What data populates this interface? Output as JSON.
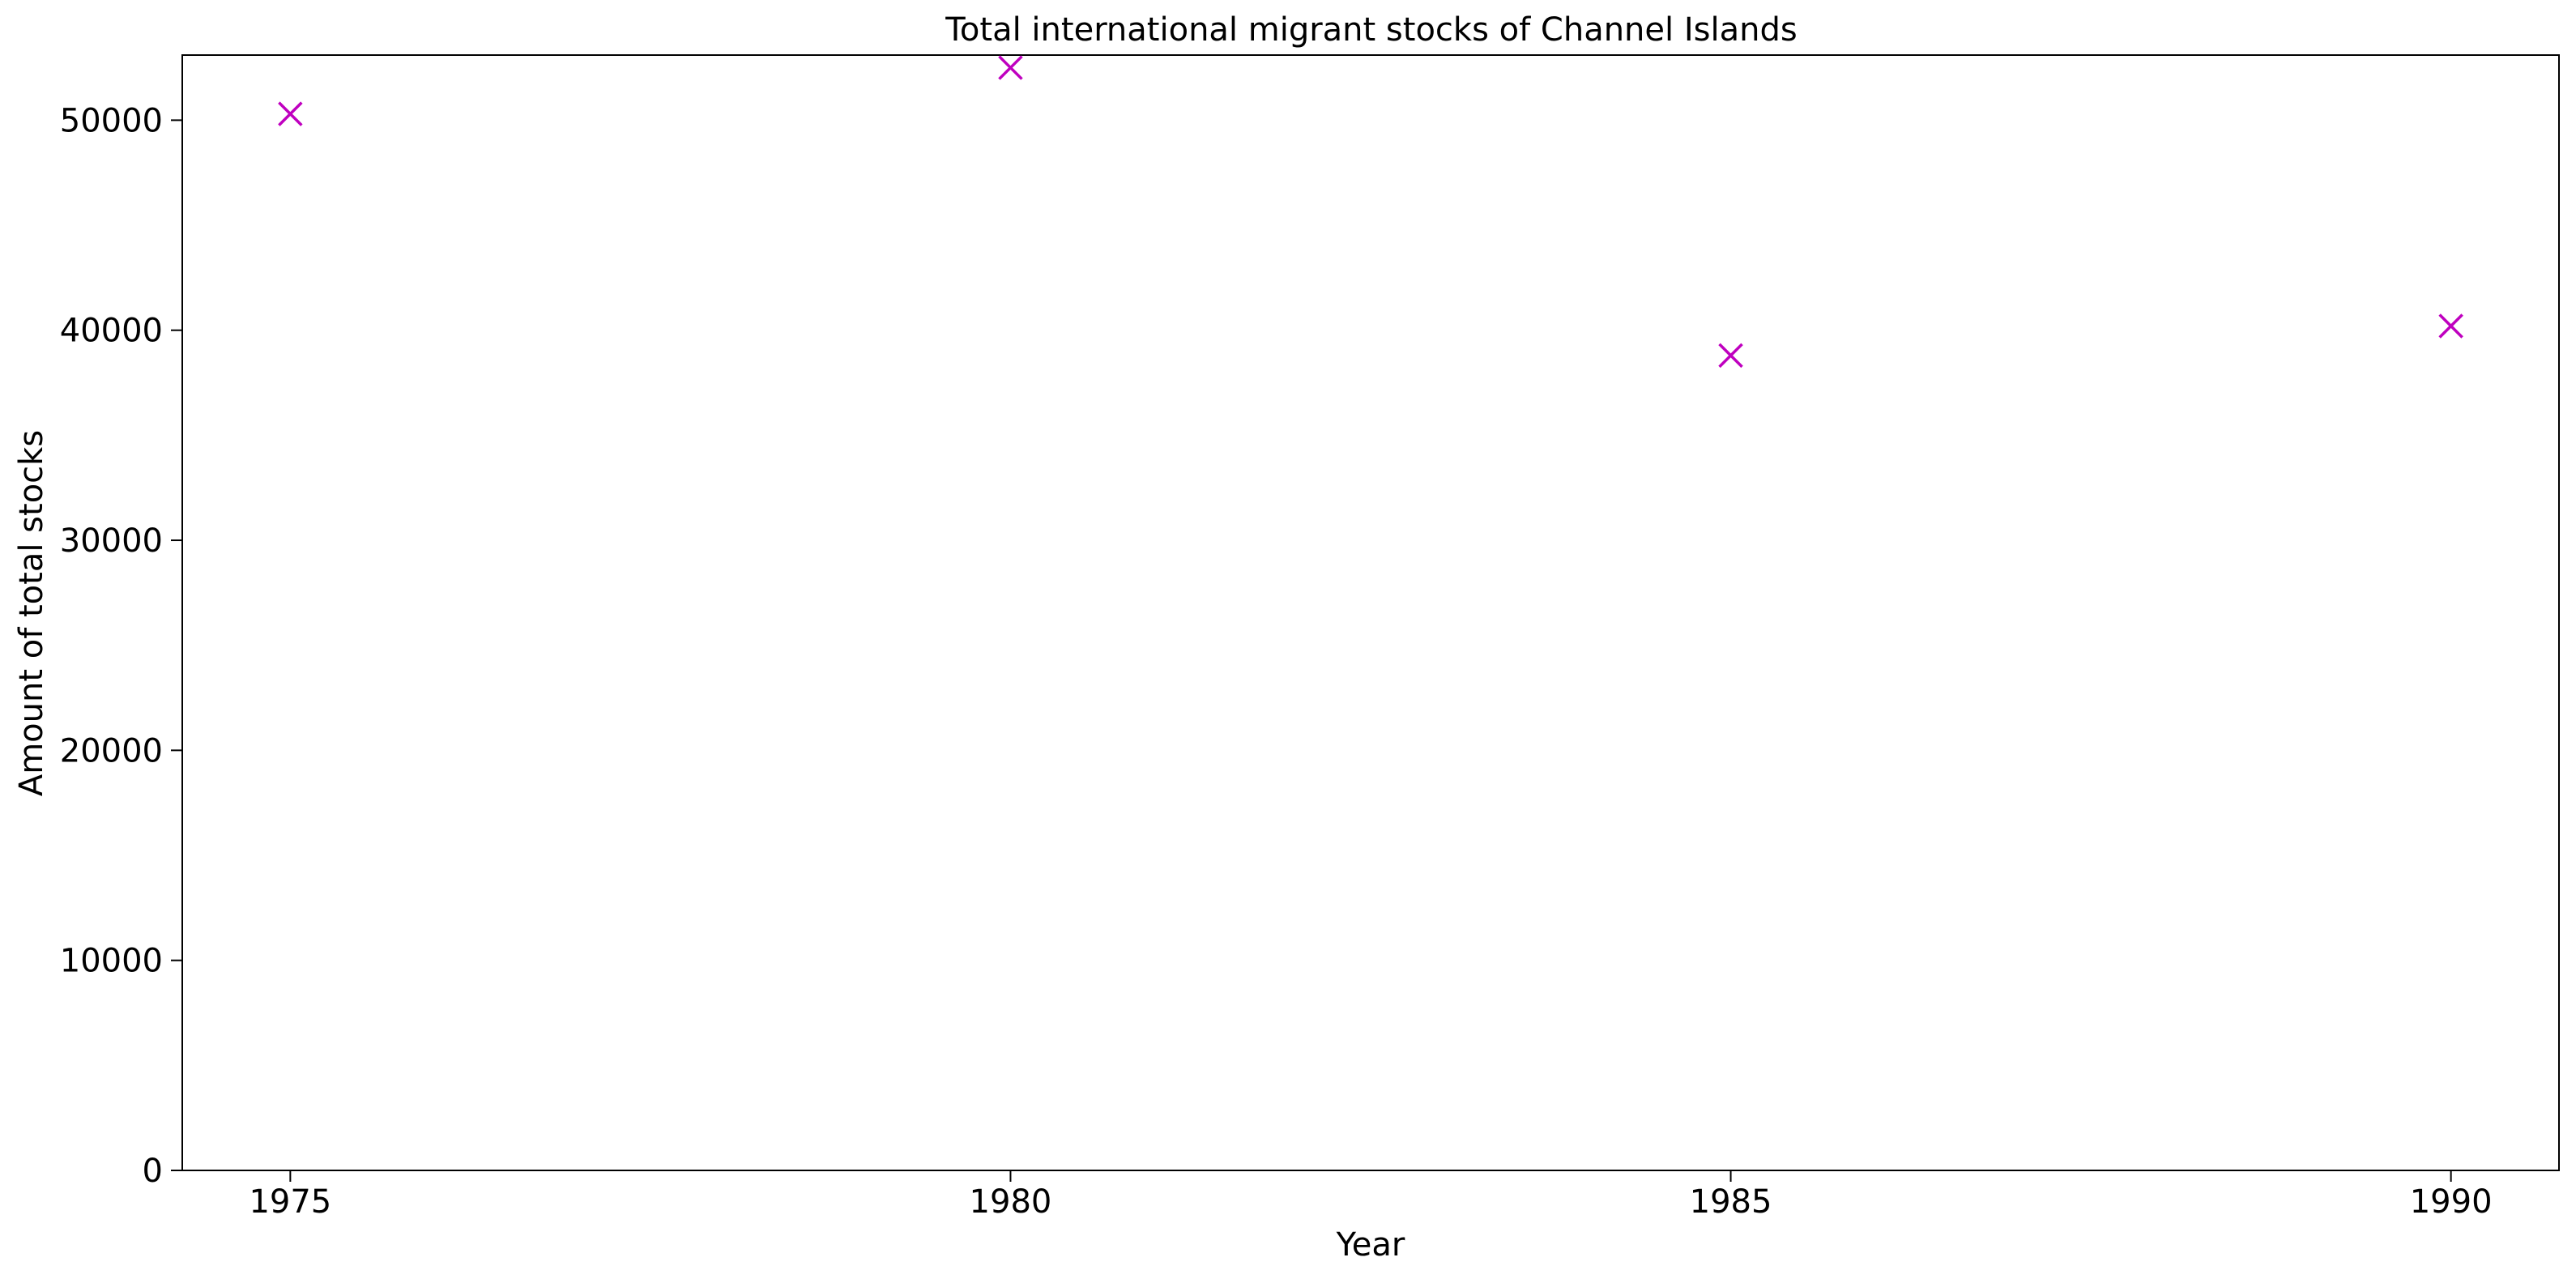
{
  "chart_data": {
    "type": "scatter",
    "title": "Total international migrant stocks of Channel Islands",
    "xlabel": "Year",
    "ylabel": "Amount of total stocks",
    "x": [
      1975,
      1980,
      1985,
      1990
    ],
    "series": [
      {
        "values": [
          50300,
          52500,
          38800,
          40200
        ]
      }
    ],
    "xticks": [
      "1975",
      "1980",
      "1985",
      "1990"
    ],
    "yticks": [
      "0",
      "10000",
      "20000",
      "30000",
      "40000",
      "50000"
    ],
    "xlim": [
      1974.25,
      1990.75
    ],
    "ylim": [
      0,
      53100
    ],
    "marker": "x",
    "grid": false,
    "colors": {
      "marker": "#bf00bf",
      "axes": "#000000",
      "background": "#ffffff"
    }
  }
}
